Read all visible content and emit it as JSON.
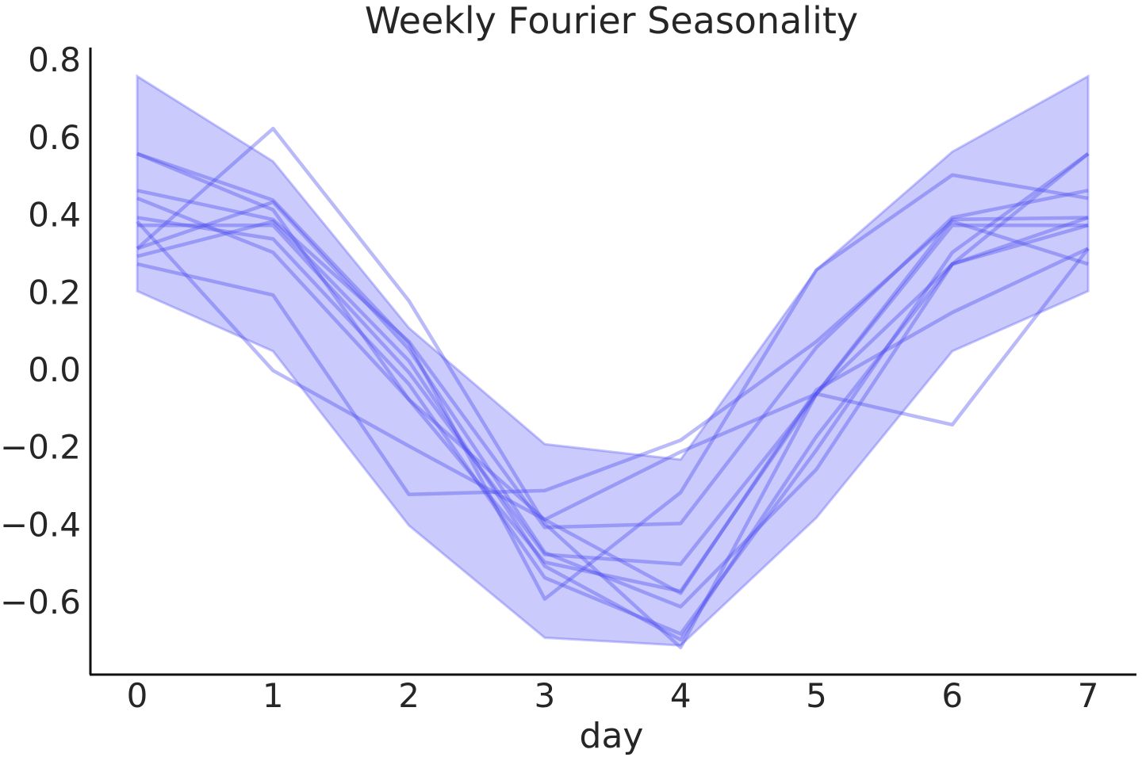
{
  "chart_data": {
    "type": "line",
    "title": "Weekly Fourier Seasonality",
    "xlabel": "day",
    "ylabel": "",
    "x": [
      0,
      1,
      2,
      3,
      4,
      5,
      6,
      7
    ],
    "x_ticks": [
      0,
      1,
      2,
      3,
      4,
      5,
      6,
      7
    ],
    "y_ticks": [
      -0.6,
      -0.4,
      -0.2,
      0.0,
      0.2,
      0.4,
      0.6,
      0.8
    ],
    "y_tick_labels": [
      "−0.6",
      "−0.4",
      "−0.2",
      "0.0",
      "0.2",
      "0.4",
      "0.6",
      "0.8"
    ],
    "xlim": [
      -0.35,
      7.35
    ],
    "ylim": [
      -0.78,
      0.83
    ],
    "grid": false,
    "colors": {
      "band_fill": "#5a5af5",
      "band_edge": "#5a5af5",
      "line": "#4a4af0",
      "axis": "#111111",
      "text": "#262626"
    },
    "band": {
      "upper": [
        0.755,
        0.535,
        0.105,
        -0.195,
        -0.235,
        0.255,
        0.56,
        0.755
      ],
      "lower": [
        0.2,
        0.045,
        -0.405,
        -0.695,
        -0.715,
        -0.385,
        0.045,
        0.2
      ]
    },
    "series": [
      {
        "values": [
          0.555,
          0.435,
          0.065,
          -0.595,
          -0.32,
          0.255,
          0.5,
          0.44
        ]
      },
      {
        "values": [
          0.46,
          0.385,
          0.07,
          -0.41,
          -0.4,
          0.055,
          0.39,
          0.46
        ]
      },
      {
        "values": [
          0.44,
          0.3,
          -0.08,
          -0.5,
          -0.575,
          -0.065,
          0.385,
          0.39
        ]
      },
      {
        "values": [
          0.39,
          0.335,
          -0.04,
          -0.54,
          -0.685,
          -0.21,
          0.3,
          0.555
        ]
      },
      {
        "values": [
          0.37,
          0.37,
          -0.01,
          -0.48,
          -0.505,
          -0.065,
          0.37,
          0.37
        ]
      },
      {
        "values": [
          0.31,
          0.43,
          0.05,
          -0.475,
          -0.615,
          -0.26,
          0.27,
          0.39
        ]
      },
      {
        "values": [
          0.29,
          0.38,
          0.02,
          -0.51,
          -0.7,
          -0.175,
          0.27,
          0.555
        ]
      },
      {
        "values": [
          0.27,
          0.19,
          -0.325,
          -0.315,
          -0.185,
          0.07,
          0.38,
          0.27
        ]
      },
      {
        "values": [
          0.555,
          0.41,
          -0.08,
          -0.39,
          -0.58,
          -0.055,
          0.145,
          0.31
        ]
      },
      {
        "values": [
          0.38,
          -0.005,
          -0.2,
          -0.39,
          -0.215,
          -0.065,
          -0.145,
          0.31
        ]
      },
      {
        "values": [
          0.31,
          0.62,
          0.175,
          -0.4,
          -0.72,
          -0.065,
          0.27,
          0.37
        ]
      }
    ]
  }
}
